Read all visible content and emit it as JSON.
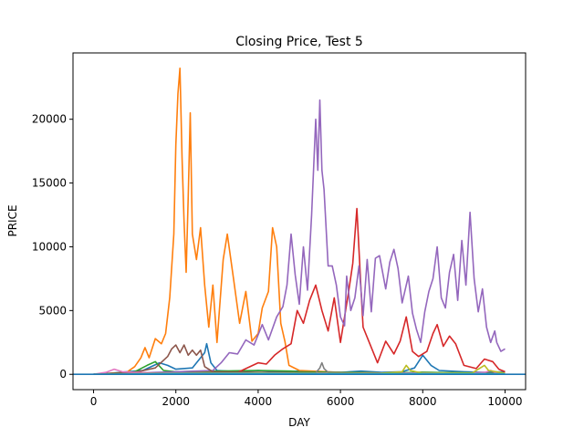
{
  "chart_data": {
    "type": "line",
    "title": "Closing Price, Test 5",
    "xlabel": "DAY",
    "ylabel": "PRICE",
    "xlim": [
      -500,
      10500
    ],
    "ylim": [
      -1200,
      25200
    ],
    "xticks": [
      0,
      2000,
      4000,
      6000,
      8000,
      10000
    ],
    "yticks": [
      0,
      5000,
      10000,
      15000,
      20000
    ],
    "grid": false,
    "legend": "none",
    "series": [
      {
        "color": "#1f77b4",
        "points": [
          [
            0,
            0
          ],
          [
            400,
            80
          ],
          [
            800,
            200
          ],
          [
            1200,
            300
          ],
          [
            1600,
            900
          ],
          [
            1800,
            700
          ],
          [
            2000,
            400
          ],
          [
            2400,
            500
          ],
          [
            2700,
            1700
          ],
          [
            2750,
            2400
          ],
          [
            2850,
            900
          ],
          [
            3000,
            300
          ],
          [
            3500,
            200
          ],
          [
            4000,
            300
          ],
          [
            4500,
            200
          ],
          [
            5000,
            250
          ],
          [
            5500,
            200
          ],
          [
            6000,
            150
          ],
          [
            6500,
            250
          ],
          [
            7000,
            150
          ],
          [
            7500,
            200
          ],
          [
            7800,
            500
          ],
          [
            8000,
            1500
          ],
          [
            8200,
            700
          ],
          [
            8400,
            300
          ],
          [
            9000,
            200
          ],
          [
            9500,
            150
          ],
          [
            10000,
            200
          ]
        ]
      },
      {
        "color": "#ff7f0e",
        "points": [
          [
            0,
            0
          ],
          [
            800,
            150
          ],
          [
            1000,
            600
          ],
          [
            1150,
            1300
          ],
          [
            1250,
            2100
          ],
          [
            1350,
            1300
          ],
          [
            1500,
            2800
          ],
          [
            1650,
            2400
          ],
          [
            1750,
            3200
          ],
          [
            1850,
            6000
          ],
          [
            1950,
            11000
          ],
          [
            2000,
            18000
          ],
          [
            2050,
            22000
          ],
          [
            2100,
            24000
          ],
          [
            2150,
            17000
          ],
          [
            2200,
            12000
          ],
          [
            2250,
            8000
          ],
          [
            2300,
            14000
          ],
          [
            2350,
            20500
          ],
          [
            2400,
            11000
          ],
          [
            2500,
            9000
          ],
          [
            2600,
            11500
          ],
          [
            2700,
            7000
          ],
          [
            2800,
            3700
          ],
          [
            2900,
            7000
          ],
          [
            3000,
            2500
          ],
          [
            3150,
            9000
          ],
          [
            3250,
            11000
          ],
          [
            3400,
            7500
          ],
          [
            3550,
            4000
          ],
          [
            3700,
            6500
          ],
          [
            3850,
            2600
          ],
          [
            4000,
            3200
          ],
          [
            4100,
            5200
          ],
          [
            4250,
            6500
          ],
          [
            4350,
            11500
          ],
          [
            4450,
            10000
          ],
          [
            4550,
            4000
          ],
          [
            4650,
            2600
          ],
          [
            4750,
            700
          ],
          [
            5000,
            300
          ],
          [
            6000,
            150
          ],
          [
            7000,
            100
          ],
          [
            8000,
            150
          ],
          [
            9000,
            100
          ],
          [
            10000,
            100
          ]
        ]
      },
      {
        "color": "#2ca02c",
        "points": [
          [
            0,
            0
          ],
          [
            500,
            80
          ],
          [
            1000,
            200
          ],
          [
            1300,
            700
          ],
          [
            1500,
            1000
          ],
          [
            1700,
            300
          ],
          [
            2000,
            200
          ],
          [
            3000,
            250
          ],
          [
            4000,
            300
          ],
          [
            4800,
            250
          ],
          [
            5000,
            200
          ],
          [
            6000,
            150
          ],
          [
            7000,
            100
          ],
          [
            8000,
            150
          ],
          [
            9000,
            120
          ],
          [
            10000,
            100
          ]
        ]
      },
      {
        "color": "#d62728",
        "points": [
          [
            0,
            0
          ],
          [
            2000,
            100
          ],
          [
            3500,
            150
          ],
          [
            4000,
            900
          ],
          [
            4200,
            800
          ],
          [
            4400,
            1500
          ],
          [
            4600,
            2000
          ],
          [
            4800,
            2400
          ],
          [
            4950,
            5000
          ],
          [
            5100,
            4000
          ],
          [
            5250,
            5800
          ],
          [
            5400,
            7000
          ],
          [
            5550,
            5000
          ],
          [
            5700,
            3400
          ],
          [
            5850,
            6000
          ],
          [
            6000,
            2500
          ],
          [
            6200,
            6500
          ],
          [
            6300,
            8700
          ],
          [
            6400,
            13000
          ],
          [
            6500,
            6700
          ],
          [
            6550,
            3700
          ],
          [
            6700,
            2500
          ],
          [
            6900,
            900
          ],
          [
            7100,
            2600
          ],
          [
            7300,
            1600
          ],
          [
            7450,
            2600
          ],
          [
            7600,
            4500
          ],
          [
            7750,
            1800
          ],
          [
            7900,
            1400
          ],
          [
            8100,
            1800
          ],
          [
            8250,
            3200
          ],
          [
            8350,
            3900
          ],
          [
            8500,
            2200
          ],
          [
            8650,
            3000
          ],
          [
            8800,
            2400
          ],
          [
            9000,
            700
          ],
          [
            9300,
            450
          ],
          [
            9500,
            1200
          ],
          [
            9700,
            1000
          ],
          [
            9850,
            400
          ],
          [
            10000,
            200
          ]
        ]
      },
      {
        "color": "#9467bd",
        "points": [
          [
            0,
            0
          ],
          [
            2000,
            200
          ],
          [
            2900,
            300
          ],
          [
            3100,
            900
          ],
          [
            3300,
            1700
          ],
          [
            3500,
            1600
          ],
          [
            3700,
            2700
          ],
          [
            3900,
            2300
          ],
          [
            4100,
            3900
          ],
          [
            4250,
            2700
          ],
          [
            4450,
            4500
          ],
          [
            4600,
            5300
          ],
          [
            4700,
            7000
          ],
          [
            4800,
            11000
          ],
          [
            4900,
            7800
          ],
          [
            5000,
            5500
          ],
          [
            5100,
            10000
          ],
          [
            5200,
            6600
          ],
          [
            5300,
            12500
          ],
          [
            5400,
            20000
          ],
          [
            5450,
            16000
          ],
          [
            5500,
            21500
          ],
          [
            5550,
            16000
          ],
          [
            5600,
            14500
          ],
          [
            5700,
            8500
          ],
          [
            5800,
            8500
          ],
          [
            5900,
            7000
          ],
          [
            6000,
            4500
          ],
          [
            6100,
            3800
          ],
          [
            6150,
            7700
          ],
          [
            6250,
            5000
          ],
          [
            6350,
            6000
          ],
          [
            6450,
            8500
          ],
          [
            6550,
            4600
          ],
          [
            6650,
            9000
          ],
          [
            6750,
            4900
          ],
          [
            6850,
            9100
          ],
          [
            6950,
            9300
          ],
          [
            7100,
            6700
          ],
          [
            7200,
            8800
          ],
          [
            7300,
            9800
          ],
          [
            7400,
            8300
          ],
          [
            7500,
            5600
          ],
          [
            7650,
            7700
          ],
          [
            7750,
            4800
          ],
          [
            7850,
            3500
          ],
          [
            7950,
            2500
          ],
          [
            8050,
            4900
          ],
          [
            8150,
            6500
          ],
          [
            8250,
            7500
          ],
          [
            8350,
            10000
          ],
          [
            8450,
            6000
          ],
          [
            8550,
            5200
          ],
          [
            8650,
            8000
          ],
          [
            8750,
            9400
          ],
          [
            8850,
            5800
          ],
          [
            8950,
            10500
          ],
          [
            9050,
            7000
          ],
          [
            9150,
            12700
          ],
          [
            9250,
            7500
          ],
          [
            9350,
            4900
          ],
          [
            9450,
            6700
          ],
          [
            9550,
            3700
          ],
          [
            9650,
            2500
          ],
          [
            9750,
            3400
          ],
          [
            9800,
            2500
          ],
          [
            9900,
            1800
          ],
          [
            10000,
            2000
          ]
        ]
      },
      {
        "color": "#8c564b",
        "points": [
          [
            0,
            0
          ],
          [
            1000,
            150
          ],
          [
            1500,
            500
          ],
          [
            1800,
            1400
          ],
          [
            1900,
            2000
          ],
          [
            2000,
            2300
          ],
          [
            2100,
            1700
          ],
          [
            2200,
            2300
          ],
          [
            2300,
            1500
          ],
          [
            2400,
            1900
          ],
          [
            2500,
            1500
          ],
          [
            2600,
            1900
          ],
          [
            2700,
            600
          ],
          [
            2900,
            200
          ],
          [
            4000,
            150
          ],
          [
            6000,
            100
          ],
          [
            8000,
            100
          ],
          [
            10000,
            80
          ]
        ]
      },
      {
        "color": "#e377c2",
        "points": [
          [
            0,
            0
          ],
          [
            300,
            150
          ],
          [
            500,
            400
          ],
          [
            700,
            200
          ],
          [
            1500,
            100
          ],
          [
            2500,
            100
          ],
          [
            3500,
            80
          ],
          [
            5000,
            100
          ],
          [
            6500,
            80
          ],
          [
            8000,
            100
          ],
          [
            9000,
            80
          ],
          [
            9500,
            150
          ],
          [
            9650,
            300
          ],
          [
            9800,
            100
          ],
          [
            10000,
            80
          ]
        ]
      },
      {
        "color": "#7f7f7f",
        "points": [
          [
            0,
            0
          ],
          [
            1500,
            80
          ],
          [
            3000,
            100
          ],
          [
            4500,
            80
          ],
          [
            5400,
            120
          ],
          [
            5500,
            500
          ],
          [
            5550,
            900
          ],
          [
            5600,
            450
          ],
          [
            5700,
            150
          ],
          [
            6500,
            80
          ],
          [
            8000,
            60
          ],
          [
            10000,
            50
          ]
        ]
      },
      {
        "color": "#bcbd22",
        "points": [
          [
            0,
            0
          ],
          [
            2000,
            60
          ],
          [
            4000,
            80
          ],
          [
            6000,
            60
          ],
          [
            7000,
            80
          ],
          [
            7500,
            200
          ],
          [
            7600,
            700
          ],
          [
            7700,
            300
          ],
          [
            8000,
            80
          ],
          [
            9200,
            100
          ],
          [
            9400,
            500
          ],
          [
            9500,
            700
          ],
          [
            9600,
            300
          ],
          [
            10000,
            80
          ]
        ]
      },
      {
        "color": "#17becf",
        "points": [
          [
            0,
            0
          ],
          [
            2000,
            50
          ],
          [
            4000,
            60
          ],
          [
            6000,
            40
          ],
          [
            8000,
            50
          ],
          [
            10000,
            40
          ]
        ]
      },
      {
        "color": "#1f77b4",
        "points": [
          [
            -500,
            0
          ],
          [
            10500,
            0
          ]
        ]
      }
    ]
  }
}
